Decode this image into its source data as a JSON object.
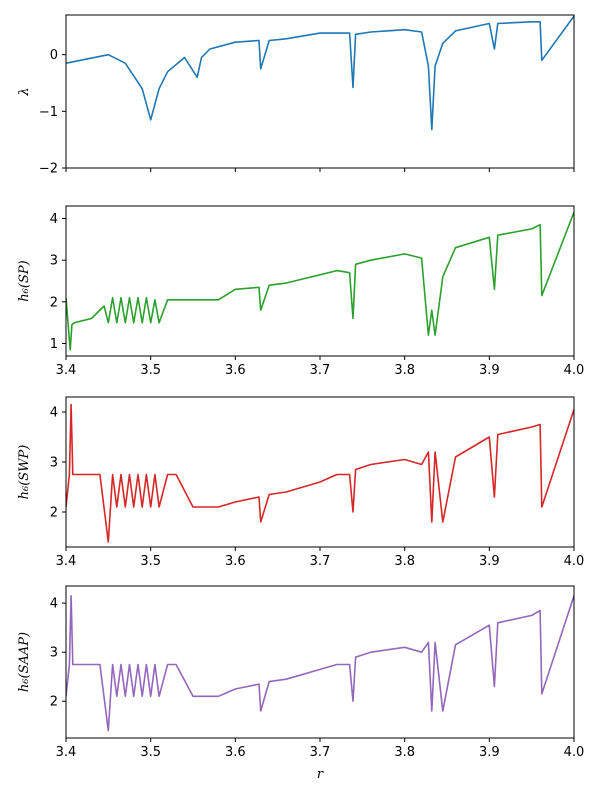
{
  "chart_data": [
    {
      "type": "line",
      "ylabel": "λ",
      "color": "#1f77b4",
      "xlim": [
        3.4,
        4.0
      ],
      "ylim": [
        -2,
        0.7
      ],
      "xticks": [
        3.4,
        3.5,
        3.6,
        3.7,
        3.8,
        3.9,
        4.0
      ],
      "xtick_labels": [],
      "yticks": [
        -2,
        -1,
        0
      ],
      "ytick_labels": [
        "−2",
        "−1",
        "0"
      ],
      "x": [
        3.4,
        3.45,
        3.47,
        3.49,
        3.5,
        3.51,
        3.52,
        3.54,
        3.555,
        3.56,
        3.57,
        3.6,
        3.628,
        3.63,
        3.64,
        3.66,
        3.7,
        3.735,
        3.739,
        3.742,
        3.76,
        3.8,
        3.82,
        3.828,
        3.832,
        3.836,
        3.845,
        3.86,
        3.9,
        3.906,
        3.91,
        3.95,
        3.96,
        3.962,
        4.0
      ],
      "y": [
        -0.15,
        0.0,
        -0.15,
        -0.6,
        -1.15,
        -0.6,
        -0.3,
        -0.05,
        -0.4,
        -0.05,
        0.1,
        0.22,
        0.25,
        -0.25,
        0.25,
        0.28,
        0.38,
        0.38,
        -0.58,
        0.36,
        0.4,
        0.44,
        0.4,
        -0.2,
        -1.32,
        -0.2,
        0.2,
        0.42,
        0.55,
        0.1,
        0.55,
        0.58,
        0.58,
        -0.1,
        0.68
      ]
    },
    {
      "type": "line",
      "ylabel": "h₆(SP)",
      "color": "#2ca02c",
      "xlim": [
        3.4,
        4.0
      ],
      "ylim": [
        0.7,
        4.3
      ],
      "xticks": [
        3.4,
        3.5,
        3.6,
        3.7,
        3.8,
        3.9,
        4.0
      ],
      "xtick_labels": [
        "3.4",
        "3.5",
        "3.6",
        "3.7",
        "3.8",
        "3.9",
        "4.0"
      ],
      "yticks": [
        1,
        2,
        3,
        4
      ],
      "ytick_labels": [
        "1",
        "2",
        "3",
        "4"
      ],
      "x": [
        3.4,
        3.405,
        3.407,
        3.41,
        3.43,
        3.445,
        3.45,
        3.455,
        3.46,
        3.465,
        3.47,
        3.475,
        3.48,
        3.485,
        3.49,
        3.495,
        3.5,
        3.505,
        3.51,
        3.52,
        3.53,
        3.55,
        3.58,
        3.6,
        3.628,
        3.63,
        3.64,
        3.66,
        3.68,
        3.7,
        3.72,
        3.735,
        3.739,
        3.742,
        3.76,
        3.8,
        3.82,
        3.828,
        3.832,
        3.836,
        3.845,
        3.86,
        3.9,
        3.906,
        3.91,
        3.95,
        3.96,
        3.962,
        4.0
      ],
      "y": [
        2.1,
        0.85,
        1.45,
        1.5,
        1.6,
        1.9,
        1.5,
        2.1,
        1.5,
        2.1,
        1.5,
        2.1,
        1.5,
        2.1,
        1.5,
        2.1,
        1.5,
        2.05,
        1.5,
        2.05,
        2.05,
        2.05,
        2.05,
        2.3,
        2.35,
        1.8,
        2.4,
        2.45,
        2.55,
        2.65,
        2.75,
        2.7,
        1.6,
        2.9,
        3.0,
        3.15,
        3.05,
        1.2,
        1.8,
        1.2,
        2.6,
        3.3,
        3.55,
        2.3,
        3.6,
        3.75,
        3.85,
        2.15,
        4.15
      ]
    },
    {
      "type": "line",
      "ylabel": "h₆(SWP)",
      "color": "#d62728",
      "xlim": [
        3.4,
        4.0
      ],
      "ylim": [
        1.3,
        4.3
      ],
      "xticks": [
        3.4,
        3.5,
        3.6,
        3.7,
        3.8,
        3.9,
        4.0
      ],
      "xtick_labels": [
        "3.4",
        "3.5",
        "3.6",
        "3.7",
        "3.8",
        "3.9",
        "4.0"
      ],
      "yticks": [
        2,
        3,
        4
      ],
      "ytick_labels": [
        "2",
        "3",
        "4"
      ],
      "x": [
        3.4,
        3.404,
        3.406,
        3.408,
        3.412,
        3.44,
        3.45,
        3.455,
        3.46,
        3.465,
        3.47,
        3.475,
        3.48,
        3.485,
        3.49,
        3.495,
        3.5,
        3.505,
        3.51,
        3.52,
        3.53,
        3.55,
        3.58,
        3.6,
        3.628,
        3.63,
        3.64,
        3.66,
        3.68,
        3.7,
        3.72,
        3.735,
        3.739,
        3.742,
        3.76,
        3.8,
        3.82,
        3.828,
        3.832,
        3.836,
        3.845,
        3.86,
        3.9,
        3.906,
        3.91,
        3.95,
        3.96,
        3.962,
        4.0
      ],
      "y": [
        2.1,
        2.75,
        4.15,
        2.75,
        2.75,
        2.75,
        1.4,
        2.75,
        2.1,
        2.75,
        2.1,
        2.75,
        2.1,
        2.75,
        2.1,
        2.75,
        2.1,
        2.75,
        2.1,
        2.75,
        2.75,
        2.1,
        2.1,
        2.2,
        2.3,
        1.8,
        2.35,
        2.4,
        2.5,
        2.6,
        2.75,
        2.75,
        2.0,
        2.85,
        2.95,
        3.05,
        2.95,
        3.2,
        1.8,
        3.2,
        1.8,
        3.1,
        3.5,
        2.3,
        3.55,
        3.7,
        3.75,
        2.1,
        4.05
      ]
    },
    {
      "type": "line",
      "ylabel": "h₆(SAAP)",
      "xlabel": "r",
      "color": "#9467bd",
      "xlim": [
        3.4,
        4.0
      ],
      "ylim": [
        1.25,
        4.35
      ],
      "xticks": [
        3.4,
        3.5,
        3.6,
        3.7,
        3.8,
        3.9,
        4.0
      ],
      "xtick_labels": [
        "3.4",
        "3.5",
        "3.6",
        "3.7",
        "3.8",
        "3.9",
        "4.0"
      ],
      "yticks": [
        2,
        3,
        4
      ],
      "ytick_labels": [
        "2",
        "3",
        "4"
      ],
      "x": [
        3.4,
        3.404,
        3.406,
        3.408,
        3.412,
        3.44,
        3.45,
        3.455,
        3.46,
        3.465,
        3.47,
        3.475,
        3.48,
        3.485,
        3.49,
        3.495,
        3.5,
        3.505,
        3.51,
        3.52,
        3.53,
        3.55,
        3.58,
        3.6,
        3.628,
        3.63,
        3.64,
        3.66,
        3.68,
        3.7,
        3.72,
        3.735,
        3.739,
        3.742,
        3.76,
        3.8,
        3.82,
        3.828,
        3.832,
        3.836,
        3.845,
        3.86,
        3.9,
        3.906,
        3.91,
        3.95,
        3.96,
        3.962,
        4.0
      ],
      "y": [
        2.1,
        2.75,
        4.15,
        2.75,
        2.75,
        2.75,
        1.4,
        2.75,
        2.1,
        2.75,
        2.1,
        2.75,
        2.1,
        2.75,
        2.1,
        2.75,
        2.1,
        2.75,
        2.1,
        2.75,
        2.75,
        2.1,
        2.1,
        2.25,
        2.35,
        1.8,
        2.4,
        2.45,
        2.55,
        2.65,
        2.75,
        2.75,
        2.0,
        2.9,
        3.0,
        3.1,
        3.0,
        3.2,
        1.8,
        3.2,
        1.8,
        3.15,
        3.55,
        2.3,
        3.6,
        3.75,
        3.85,
        2.15,
        4.15
      ]
    }
  ]
}
